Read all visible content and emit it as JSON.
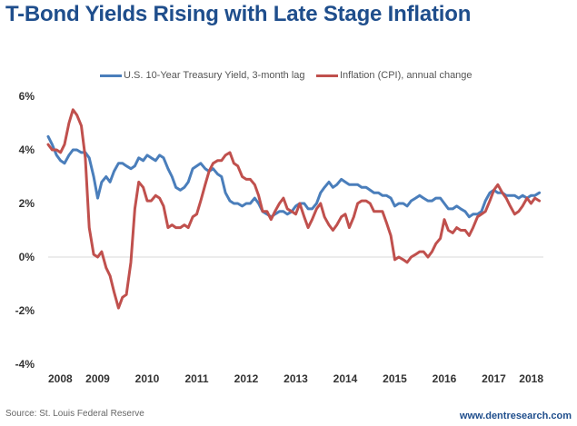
{
  "chart_data": {
    "type": "line",
    "title": "T-Bond Yields Rising with Late Stage Inflation",
    "source": "Source: St. Louis Federal Reserve",
    "website": "www.dentresearch.com",
    "xlim": [
      2008,
      2018
    ],
    "ylim": [
      -4,
      6
    ],
    "x_ticks": [
      "2008",
      "2009",
      "2010",
      "2011",
      "2012",
      "2013",
      "2014",
      "2015",
      "2016",
      "2017",
      "2018"
    ],
    "y_ticks": [
      "6%",
      "4%",
      "2%",
      "0%",
      "-2%",
      "-4%"
    ],
    "legend_position": "top",
    "grid": false,
    "series": [
      {
        "name": "U.S. 10-Year Treasury Yield, 3-month lag",
        "color": "#4a7ebb",
        "x": [
          2008.0,
          2008.08,
          2008.17,
          2008.25,
          2008.33,
          2008.42,
          2008.5,
          2008.58,
          2008.67,
          2008.75,
          2008.83,
          2008.92,
          2009.0,
          2009.08,
          2009.17,
          2009.25,
          2009.33,
          2009.42,
          2009.5,
          2009.58,
          2009.67,
          2009.75,
          2009.83,
          2009.92,
          2010.0,
          2010.08,
          2010.17,
          2010.25,
          2010.33,
          2010.42,
          2010.5,
          2010.58,
          2010.67,
          2010.75,
          2010.83,
          2010.92,
          2011.0,
          2011.08,
          2011.17,
          2011.25,
          2011.33,
          2011.42,
          2011.5,
          2011.58,
          2011.67,
          2011.75,
          2011.83,
          2011.92,
          2012.0,
          2012.08,
          2012.17,
          2012.25,
          2012.33,
          2012.42,
          2012.5,
          2012.58,
          2012.67,
          2012.75,
          2012.83,
          2012.92,
          2013.0,
          2013.08,
          2013.17,
          2013.25,
          2013.33,
          2013.42,
          2013.5,
          2013.58,
          2013.67,
          2013.75,
          2013.83,
          2013.92,
          2014.0,
          2014.08,
          2014.17,
          2014.25,
          2014.33,
          2014.42,
          2014.5,
          2014.58,
          2014.67,
          2014.75,
          2014.83,
          2014.92,
          2015.0,
          2015.08,
          2015.17,
          2015.25,
          2015.33,
          2015.42,
          2015.5,
          2015.58,
          2015.67,
          2015.75,
          2015.83,
          2015.92,
          2016.0,
          2016.08,
          2016.17,
          2016.25,
          2016.33,
          2016.42,
          2016.5,
          2016.58,
          2016.67,
          2016.75,
          2016.83,
          2016.92,
          2017.0,
          2017.08,
          2017.17,
          2017.25,
          2017.33,
          2017.42,
          2017.5,
          2017.58,
          2017.67,
          2017.75,
          2017.83,
          2017.92
        ],
        "y": [
          4.5,
          4.2,
          3.8,
          3.6,
          3.5,
          3.8,
          4.0,
          4.0,
          3.9,
          3.9,
          3.7,
          3.0,
          2.2,
          2.8,
          3.0,
          2.8,
          3.2,
          3.5,
          3.5,
          3.4,
          3.3,
          3.4,
          3.7,
          3.6,
          3.8,
          3.7,
          3.6,
          3.8,
          3.7,
          3.3,
          3.0,
          2.6,
          2.5,
          2.6,
          2.8,
          3.3,
          3.4,
          3.5,
          3.3,
          3.2,
          3.3,
          3.1,
          3.0,
          2.4,
          2.1,
          2.0,
          2.0,
          1.9,
          2.0,
          2.0,
          2.2,
          2.0,
          1.7,
          1.6,
          1.5,
          1.6,
          1.7,
          1.7,
          1.6,
          1.7,
          1.9,
          2.0,
          2.0,
          1.8,
          1.8,
          2.0,
          2.4,
          2.6,
          2.8,
          2.6,
          2.7,
          2.9,
          2.8,
          2.7,
          2.7,
          2.7,
          2.6,
          2.6,
          2.5,
          2.4,
          2.4,
          2.3,
          2.3,
          2.2,
          1.9,
          2.0,
          2.0,
          1.9,
          2.1,
          2.2,
          2.3,
          2.2,
          2.1,
          2.1,
          2.2,
          2.2,
          2.0,
          1.8,
          1.8,
          1.9,
          1.8,
          1.7,
          1.5,
          1.6,
          1.6,
          1.7,
          2.1,
          2.4,
          2.5,
          2.4,
          2.4,
          2.3,
          2.3,
          2.3,
          2.2,
          2.3,
          2.2,
          2.3,
          2.3,
          2.4
        ]
      },
      {
        "name": "Inflation (CPI), annual change",
        "color": "#c0504d",
        "x": [
          2008.0,
          2008.08,
          2008.17,
          2008.25,
          2008.33,
          2008.42,
          2008.5,
          2008.58,
          2008.67,
          2008.75,
          2008.83,
          2008.92,
          2009.0,
          2009.08,
          2009.17,
          2009.25,
          2009.33,
          2009.42,
          2009.5,
          2009.58,
          2009.67,
          2009.75,
          2009.83,
          2009.92,
          2010.0,
          2010.08,
          2010.17,
          2010.25,
          2010.33,
          2010.42,
          2010.5,
          2010.58,
          2010.67,
          2010.75,
          2010.83,
          2010.92,
          2011.0,
          2011.08,
          2011.17,
          2011.25,
          2011.33,
          2011.42,
          2011.5,
          2011.58,
          2011.67,
          2011.75,
          2011.83,
          2011.92,
          2012.0,
          2012.08,
          2012.17,
          2012.25,
          2012.33,
          2012.42,
          2012.5,
          2012.58,
          2012.67,
          2012.75,
          2012.83,
          2012.92,
          2013.0,
          2013.08,
          2013.17,
          2013.25,
          2013.33,
          2013.42,
          2013.5,
          2013.58,
          2013.67,
          2013.75,
          2013.83,
          2013.92,
          2014.0,
          2014.08,
          2014.17,
          2014.25,
          2014.33,
          2014.42,
          2014.5,
          2014.58,
          2014.67,
          2014.75,
          2014.83,
          2014.92,
          2015.0,
          2015.08,
          2015.17,
          2015.25,
          2015.33,
          2015.42,
          2015.5,
          2015.58,
          2015.67,
          2015.75,
          2015.83,
          2015.92,
          2016.0,
          2016.08,
          2016.17,
          2016.25,
          2016.33,
          2016.42,
          2016.5,
          2016.58,
          2016.67,
          2016.75,
          2016.83,
          2016.92,
          2017.0,
          2017.08,
          2017.17,
          2017.25,
          2017.33,
          2017.42,
          2017.5,
          2017.58,
          2017.67,
          2017.75,
          2017.83,
          2017.92
        ],
        "y": [
          4.2,
          4.0,
          4.0,
          3.9,
          4.2,
          5.0,
          5.5,
          5.3,
          4.9,
          3.7,
          1.1,
          0.1,
          0.0,
          0.2,
          -0.4,
          -0.7,
          -1.3,
          -1.9,
          -1.5,
          -1.4,
          -0.2,
          1.8,
          2.8,
          2.6,
          2.1,
          2.1,
          2.3,
          2.2,
          1.9,
          1.1,
          1.2,
          1.1,
          1.1,
          1.2,
          1.1,
          1.5,
          1.6,
          2.1,
          2.7,
          3.2,
          3.5,
          3.6,
          3.6,
          3.8,
          3.9,
          3.5,
          3.4,
          3.0,
          2.9,
          2.9,
          2.7,
          2.3,
          1.7,
          1.7,
          1.4,
          1.7,
          2.0,
          2.2,
          1.8,
          1.7,
          1.6,
          2.0,
          1.5,
          1.1,
          1.4,
          1.8,
          2.0,
          1.5,
          1.2,
          1.0,
          1.2,
          1.5,
          1.6,
          1.1,
          1.5,
          2.0,
          2.1,
          2.1,
          2.0,
          1.7,
          1.7,
          1.7,
          1.3,
          0.8,
          -0.1,
          0.0,
          -0.1,
          -0.2,
          0.0,
          0.1,
          0.2,
          0.2,
          0.0,
          0.2,
          0.5,
          0.7,
          1.4,
          1.0,
          0.9,
          1.1,
          1.0,
          1.0,
          0.8,
          1.1,
          1.5,
          1.6,
          1.7,
          2.1,
          2.5,
          2.7,
          2.4,
          2.2,
          1.9,
          1.6,
          1.7,
          1.9,
          2.2,
          2.0,
          2.2,
          2.1
        ]
      }
    ]
  }
}
